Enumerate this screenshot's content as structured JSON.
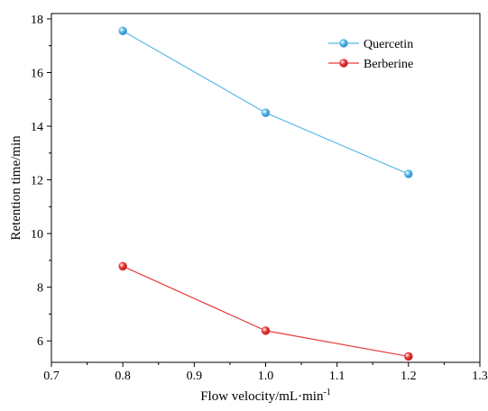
{
  "chart_data": {
    "type": "line",
    "xlabel": "Flow velocity/mL·min",
    "xlabel_sup": "-1",
    "ylabel": "Retention time/min",
    "xlim": [
      0.7,
      1.3
    ],
    "ylim": [
      5.2,
      18.2
    ],
    "x_ticks": [
      0.7,
      0.8,
      0.9,
      1.0,
      1.1,
      1.2,
      1.3
    ],
    "x_tick_labels": [
      "0.7",
      "0.8",
      "0.9",
      "1.0",
      "1.1",
      "1.2",
      "1.3"
    ],
    "y_ticks": [
      6,
      8,
      10,
      12,
      14,
      16,
      18
    ],
    "y_tick_labels": [
      "6",
      "8",
      "10",
      "12",
      "14",
      "16",
      "18"
    ],
    "grid": false,
    "legend_position": "top-right",
    "series": [
      {
        "name": "Quercetin",
        "color": "#5ab8ea",
        "x": [
          0.8,
          1.0,
          1.2
        ],
        "y": [
          17.55,
          14.5,
          12.22
        ]
      },
      {
        "name": "Berberine",
        "color": "#e83c3c",
        "x": [
          0.8,
          1.0,
          1.2
        ],
        "y": [
          8.78,
          6.38,
          5.42
        ]
      }
    ]
  }
}
